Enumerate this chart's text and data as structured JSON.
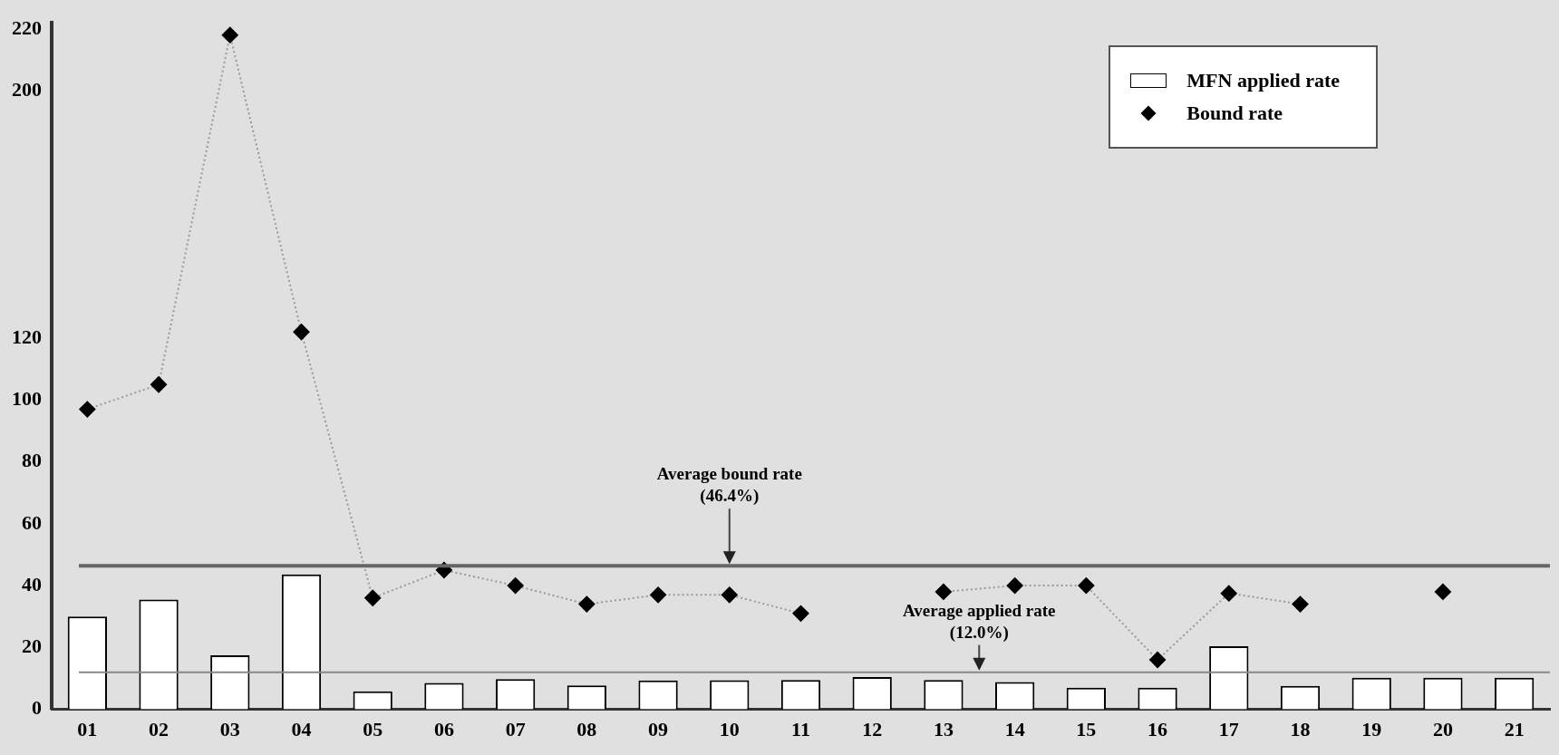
{
  "chart_data": {
    "type": "bar",
    "categories": [
      "01",
      "02",
      "03",
      "04",
      "05",
      "06",
      "07",
      "08",
      "09",
      "10",
      "11",
      "12",
      "13",
      "14",
      "15",
      "16",
      "17",
      "18",
      "19",
      "20",
      "21"
    ],
    "series": [
      {
        "name": "MFN applied rate",
        "color": "#ffffff",
        "values": [
          30,
          35.5,
          17.5,
          43.6,
          5.8,
          8.5,
          9.8,
          7.7,
          9.3,
          9.4,
          9.5,
          10.4,
          9.5,
          8.8,
          7.0,
          7.0,
          20.4,
          7.6,
          10.2,
          10.2,
          10.2
        ]
      },
      {
        "name": "Bound rate",
        "type": "line",
        "color": "#000000",
        "values": [
          97,
          105,
          218,
          122,
          36,
          45,
          40,
          34,
          37,
          37,
          31,
          null,
          38,
          40,
          40,
          16,
          37.5,
          34,
          null,
          38,
          null
        ]
      }
    ],
    "ylim": [
      0,
      222
    ],
    "yticks": [
      0,
      20,
      40,
      60,
      80,
      100,
      120,
      200,
      220
    ],
    "grid": false,
    "legend": "top right",
    "marker": "diamond",
    "line_style": "dotted",
    "ref_lines": [
      {
        "axis": "y",
        "value": 46.4,
        "label": "Average bound rate\n(46.4%)",
        "color": "#666666"
      },
      {
        "axis": "y",
        "value": 12.0,
        "label": "Average applied rate\n(12.0%)",
        "color": "#888888"
      }
    ]
  }
}
